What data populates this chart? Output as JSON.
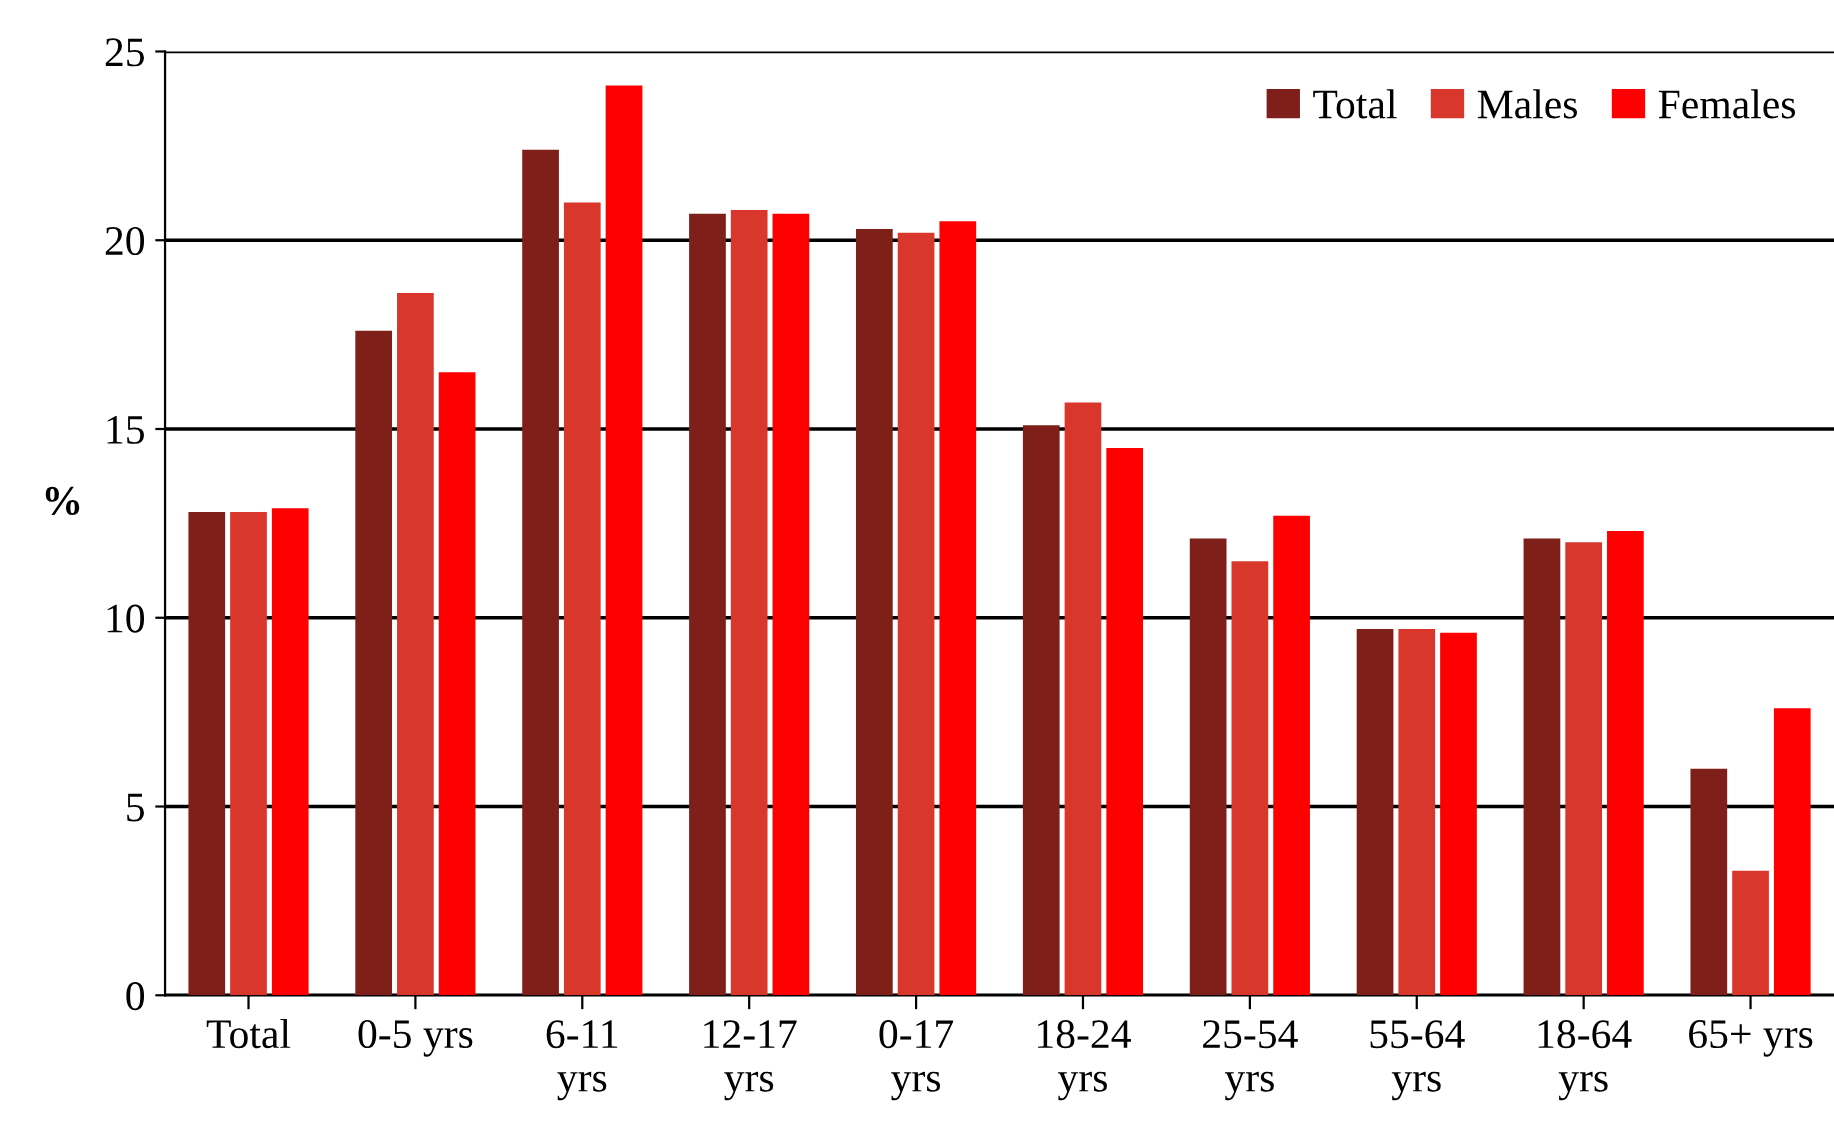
{
  "chart_data": {
    "type": "bar",
    "ylabel": "%",
    "categories": [
      "Total",
      "0-5 yrs",
      "6-11\nyrs",
      "12-17\nyrs",
      "0-17\nyrs",
      "18-24\nyrs",
      "25-54\nyrs",
      "55-64\nyrs",
      "18-64\nyrs",
      "65+ yrs"
    ],
    "series": [
      {
        "name": "Total",
        "color": "#7f1f1a",
        "values": [
          12.8,
          17.6,
          22.4,
          20.7,
          20.3,
          15.1,
          12.1,
          9.7,
          12.1,
          6.0
        ]
      },
      {
        "name": "Males",
        "color": "#d9372c",
        "values": [
          12.8,
          18.6,
          21.0,
          20.8,
          20.2,
          15.7,
          11.5,
          9.7,
          12.0,
          3.3
        ]
      },
      {
        "name": "Females",
        "color": "#ff0000",
        "values": [
          12.9,
          16.5,
          24.1,
          20.7,
          20.5,
          14.5,
          12.7,
          9.6,
          12.3,
          7.6
        ]
      }
    ],
    "ylim": [
      0,
      25
    ],
    "yticks": [
      0,
      5,
      10,
      15,
      20,
      25
    ],
    "grid": "y",
    "legend": "top right"
  }
}
